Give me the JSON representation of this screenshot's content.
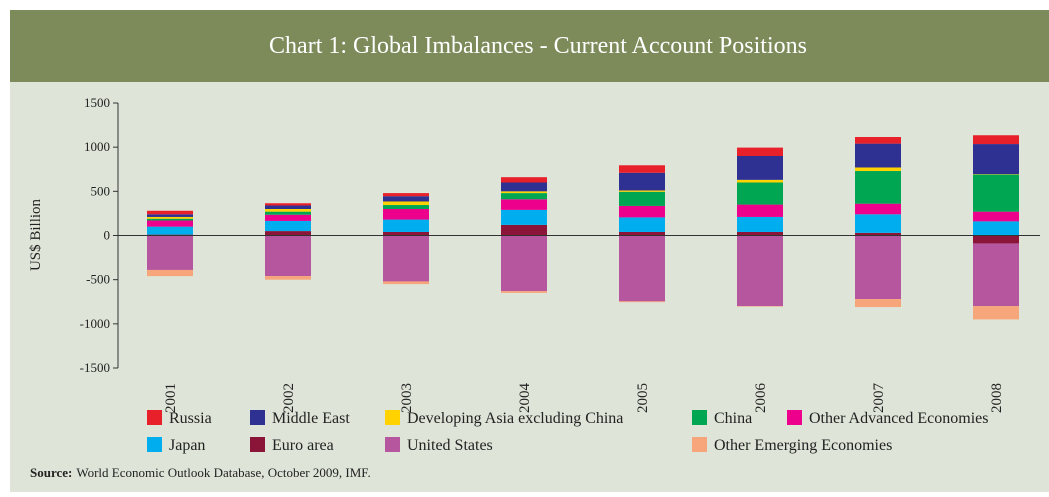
{
  "chart_data": {
    "type": "bar",
    "stacked": true,
    "title": "Chart 1: Global Imbalances - Current Account Positions",
    "ylabel": "US$ Billion",
    "categories": [
      "2001",
      "2002",
      "2003",
      "2004",
      "2005",
      "2006",
      "2007",
      "2008"
    ],
    "series": [
      {
        "name": "Russia",
        "color": "#e8202a",
        "values": [
          40,
          25,
          35,
          60,
          85,
          95,
          75,
          100
        ]
      },
      {
        "name": "Middle East",
        "color": "#2e3192",
        "values": [
          30,
          40,
          60,
          100,
          200,
          270,
          270,
          340
        ]
      },
      {
        "name": "Developing Asia excluding China",
        "color": "#ffd200",
        "values": [
          20,
          30,
          40,
          20,
          15,
          30,
          40,
          5
        ]
      },
      {
        "name": "China",
        "color": "#00a651",
        "values": [
          20,
          35,
          45,
          70,
          160,
          250,
          370,
          420
        ]
      },
      {
        "name": "Other Advanced Economies",
        "color": "#ec008c",
        "values": [
          70,
          70,
          120,
          120,
          130,
          140,
          120,
          110
        ]
      },
      {
        "name": "Japan",
        "color": "#00aeef",
        "values": [
          90,
          115,
          140,
          170,
          165,
          170,
          210,
          160
        ]
      },
      {
        "name": "Euro area",
        "color": "#8b1538",
        "values": [
          10,
          50,
          40,
          120,
          40,
          40,
          30,
          -90
        ]
      },
      {
        "name": "United States",
        "color": "#b5569f",
        "values": [
          -390,
          -460,
          -520,
          -630,
          -745,
          -800,
          -720,
          -710
        ]
      },
      {
        "name": "Other Emerging Economies",
        "color": "#f7a57a",
        "values": [
          -70,
          -40,
          -30,
          -20,
          -10,
          -5,
          -90,
          -150
        ]
      }
    ],
    "ylim": [
      -1500,
      1500
    ],
    "yticks": [
      -1500,
      -1000,
      -500,
      0,
      500,
      1000,
      1500
    ],
    "grid": false,
    "legend": "bottom",
    "source_label": "Source:",
    "source": "World  Economic Outlook Database, October 2009, IMF."
  }
}
